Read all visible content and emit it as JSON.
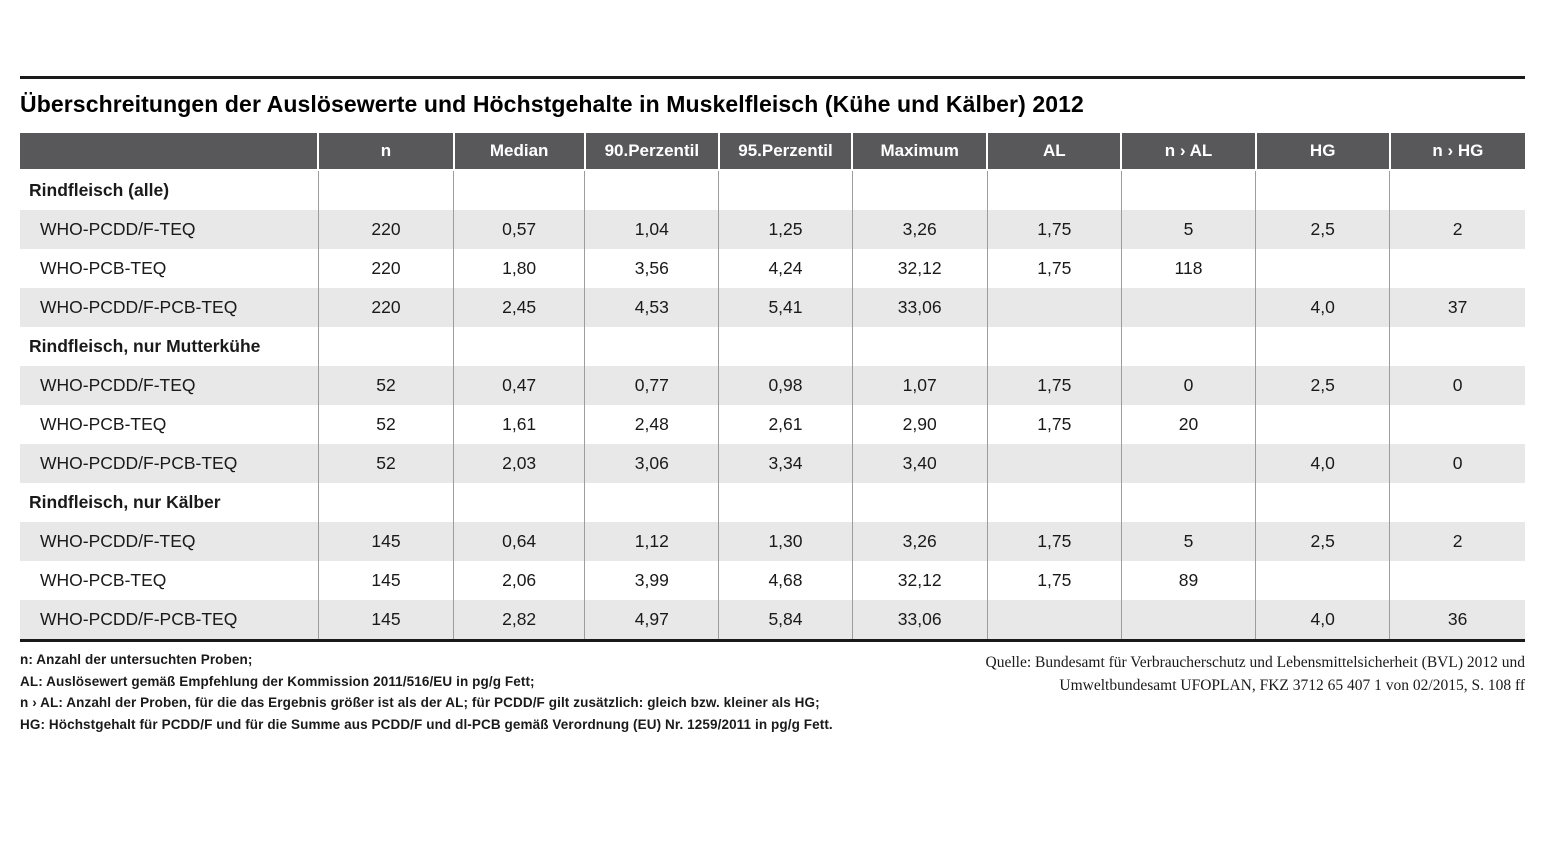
{
  "title": "Überschreitungen der Auslösewerte und Höchstgehalte in Muskelfleisch (Kühe und Kälber) 2012",
  "table": {
    "columns": [
      "",
      "n",
      "Median",
      "90.Perzentil",
      "95.Perzentil",
      "Maximum",
      "AL",
      "n › AL",
      "HG",
      "n › HG"
    ],
    "sections": [
      {
        "label": "Rindfleisch (alle)",
        "rows": [
          {
            "label": "WHO-PCDD/F-TEQ",
            "values": [
              "220",
              "0,57",
              "1,04",
              "1,25",
              "3,26",
              "1,75",
              "5",
              "2,5",
              "2"
            ]
          },
          {
            "label": "WHO-PCB-TEQ",
            "values": [
              "220",
              "1,80",
              "3,56",
              "4,24",
              "32,12",
              "1,75",
              "118",
              "",
              ""
            ]
          },
          {
            "label": "WHO-PCDD/F-PCB-TEQ",
            "values": [
              "220",
              "2,45",
              "4,53",
              "5,41",
              "33,06",
              "",
              "",
              "4,0",
              "37"
            ]
          }
        ]
      },
      {
        "label": "Rindfleisch, nur Mutterkühe",
        "rows": [
          {
            "label": "WHO-PCDD/F-TEQ",
            "values": [
              "52",
              "0,47",
              "0,77",
              "0,98",
              "1,07",
              "1,75",
              "0",
              "2,5",
              "0"
            ]
          },
          {
            "label": "WHO-PCB-TEQ",
            "values": [
              "52",
              "1,61",
              "2,48",
              "2,61",
              "2,90",
              "1,75",
              "20",
              "",
              ""
            ]
          },
          {
            "label": "WHO-PCDD/F-PCB-TEQ",
            "values": [
              "52",
              "2,03",
              "3,06",
              "3,34",
              "3,40",
              "",
              "",
              "4,0",
              "0"
            ]
          }
        ]
      },
      {
        "label": "Rindfleisch, nur Kälber",
        "rows": [
          {
            "label": "WHO-PCDD/F-TEQ",
            "values": [
              "145",
              "0,64",
              "1,12",
              "1,30",
              "3,26",
              "1,75",
              "5",
              "2,5",
              "2"
            ]
          },
          {
            "label": "WHO-PCB-TEQ",
            "values": [
              "145",
              "2,06",
              "3,99",
              "4,68",
              "32,12",
              "1,75",
              "89",
              "",
              ""
            ]
          },
          {
            "label": "WHO-PCDD/F-PCB-TEQ",
            "values": [
              "145",
              "2,82",
              "4,97",
              "5,84",
              "33,06",
              "",
              "",
              "4,0",
              "36"
            ]
          }
        ]
      }
    ]
  },
  "footnotes": [
    "n: Anzahl der untersuchten Proben;",
    "AL: Auslösewert gemäß Empfehlung der Kommission 2011/516/EU in pg/g Fett;",
    "n › AL: Anzahl der Proben, für die das Ergebnis größer ist als der AL; für PCDD/F gilt zusätzlich: gleich bzw. kleiner als HG;",
    "HG: Höchstgehalt für PCDD/F und für die Summe aus PCDD/F und dl-PCB gemäß Verordnung (EU) Nr. 1259/2011 in pg/g Fett."
  ],
  "source_lines": [
    "Quelle: Bundesamt für Verbraucherschutz und Lebensmittelsicherheit (BVL) 2012 und",
    "Umweltbundesamt UFOPLAN, FKZ 3712 65 407 1 von 02/2015, S. 108 ff"
  ],
  "colors": {
    "header_bg": "#58585a",
    "header_text": "#ffffff",
    "row_stripe": "#e8e8e8",
    "grid_line": "#9d9d9c",
    "rule": "#1a1a1a"
  }
}
